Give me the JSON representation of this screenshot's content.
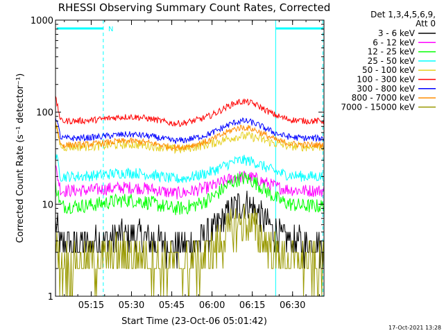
{
  "chart_data": {
    "type": "line",
    "title": "RHESSI Observing Summary Count Rates, Corrected",
    "xlabel": "Start Time (23-Oct-06 05:01:42)",
    "ylabel": "Corrected Count Rate (s⁻¹ detector⁻¹)",
    "y_scale": "log",
    "ylim": [
      1,
      1000
    ],
    "xlim_minutes": [
      0,
      100
    ],
    "x_tick_labels": [
      "05:15",
      "05:30",
      "05:45",
      "06:00",
      "06:15",
      "06:30"
    ],
    "x_tick_minutes": [
      13.3,
      28.3,
      43.3,
      58.3,
      73.3,
      88.3
    ],
    "y_tick_labels": [
      "1",
      "10",
      "100",
      "1000"
    ],
    "y_tick_values": [
      1,
      10,
      100,
      1000
    ],
    "legend_header": [
      "Det 1,3,4,5,6,9,",
      "Att 0"
    ],
    "legend_placement": "outside-right",
    "annotation_N": "N",
    "timestamp": "17-Oct-2021 13:28",
    "series": [
      {
        "name": "3 - 6 keV",
        "color": "#000000",
        "base": 3.6,
        "peak": 10,
        "noise": 0.18
      },
      {
        "name": "6 - 12 keV",
        "color": "#ff00ff",
        "base": 14,
        "peak": 20,
        "noise": 0.07
      },
      {
        "name": "12 - 25 keV",
        "color": "#00ff00",
        "base": 9.5,
        "peak": 19,
        "noise": 0.08
      },
      {
        "name": "25 - 50 keV",
        "color": "#00ffff",
        "base": 20,
        "peak": 30,
        "noise": 0.06
      },
      {
        "name": "50 - 100 keV",
        "color": "#e6d020",
        "base": 42,
        "peak": 55,
        "noise": 0.05
      },
      {
        "name": "100 - 300 keV",
        "color": "#ff0000",
        "base": 80,
        "peak": 130,
        "noise": 0.035
      },
      {
        "name": "300 - 800 keV",
        "color": "#0000ff",
        "base": 52,
        "peak": 80,
        "noise": 0.035
      },
      {
        "name": "800 - 7000 keV",
        "color": "#ff8c00",
        "base": 44,
        "peak": 68,
        "noise": 0.035
      },
      {
        "name": "7000 - 15000 keV",
        "color": "#999900",
        "base": 2.2,
        "peak": 6,
        "noise": 0.25
      }
    ]
  }
}
